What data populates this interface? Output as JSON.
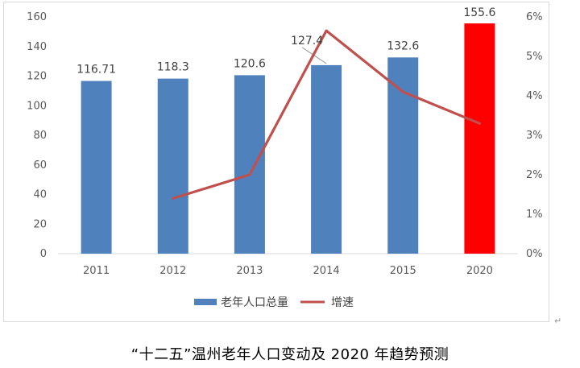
{
  "caption": "“十二五”温州老年人口变动及 2020 年趋势预测",
  "colors": {
    "bar": "#4f81bd",
    "bar_highlight": "#ff0000",
    "line": "#c0504d",
    "grid": "#d9d9d9",
    "leader": "#a6a6a6"
  },
  "chart_data": {
    "type": "bar",
    "categories": [
      "2011",
      "2012",
      "2013",
      "2014",
      "2015",
      "2020"
    ],
    "series": [
      {
        "name": "老年人口总量",
        "type": "bar",
        "axis": "left",
        "values": [
          116.71,
          118.3,
          120.6,
          127.4,
          132.6,
          155.6
        ],
        "labels": [
          "116.71",
          "118.3",
          "120.6",
          "127.4",
          "132.6",
          "155.6"
        ],
        "highlight_index": 5
      },
      {
        "name": "增速",
        "type": "line",
        "axis": "right",
        "values": [
          null,
          1.4,
          2.0,
          5.65,
          4.1,
          3.3
        ]
      }
    ],
    "y_left": {
      "ylim": [
        0,
        160
      ],
      "ticks": [
        0,
        20,
        40,
        60,
        80,
        100,
        120,
        140,
        160
      ]
    },
    "y_right": {
      "ylim": [
        0,
        6
      ],
      "ticks": [
        "0%",
        "1%",
        "2%",
        "3%",
        "4%",
        "5%",
        "6%"
      ]
    },
    "grid": false,
    "legend_position": "bottom"
  }
}
